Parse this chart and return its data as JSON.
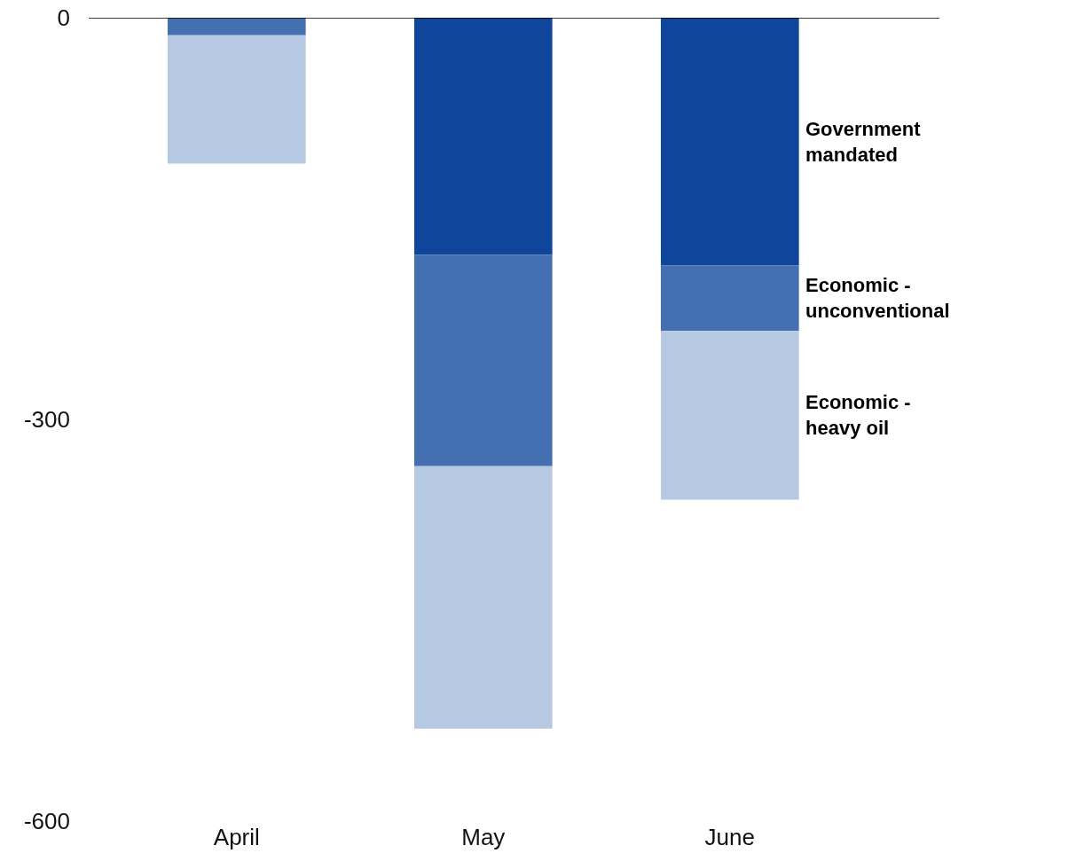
{
  "chart_data": {
    "type": "bar",
    "stacked": true,
    "categories": [
      "April",
      "May",
      "June"
    ],
    "series": [
      {
        "name": "Government mandated",
        "color": "#0f469c",
        "values": [
          0,
          -177,
          -185
        ]
      },
      {
        "name": "Economic - unconventional",
        "color": "#4470b2",
        "values": [
          -13,
          -158,
          -49
        ]
      },
      {
        "name": "Economic - heavy oil",
        "color": "#b6c8e2",
        "values": [
          -96,
          -196,
          -126
        ]
      }
    ],
    "ylim": [
      -600,
      0
    ],
    "yticks": [
      0,
      -300,
      -600
    ],
    "grid": false,
    "legend": false
  }
}
